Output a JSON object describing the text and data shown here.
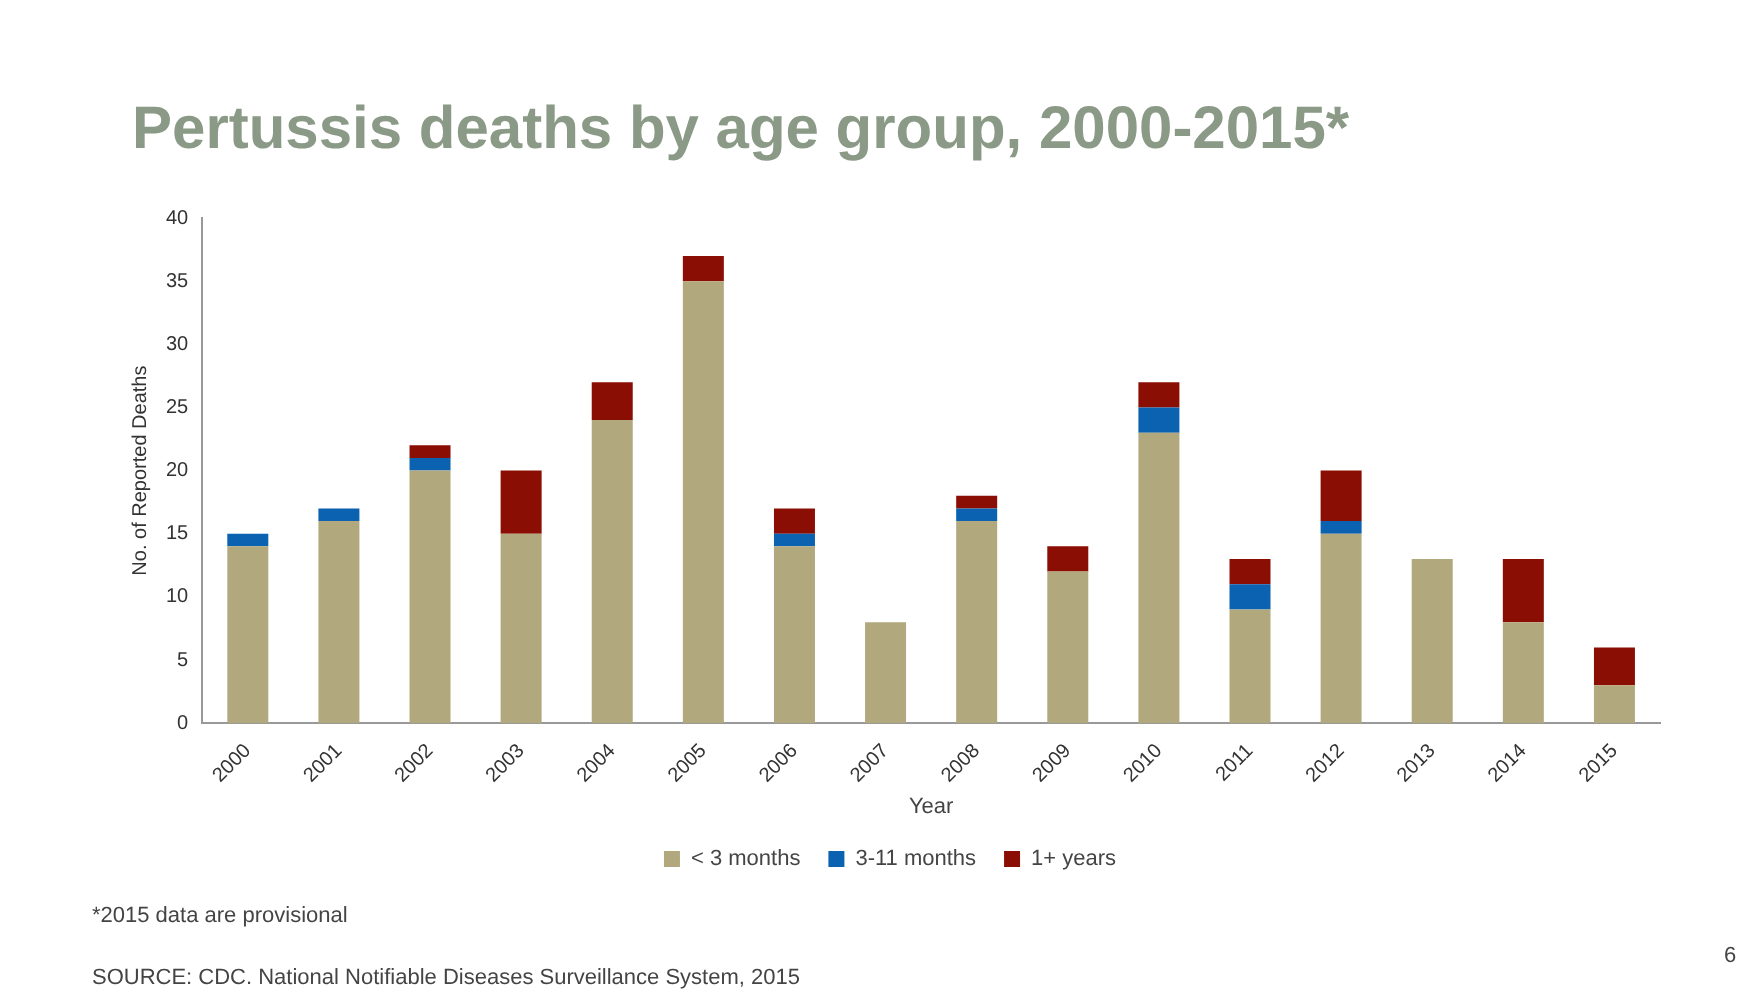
{
  "chart_data": {
    "type": "bar",
    "title": "Pertussis deaths by age group, 2000-2015*",
    "xlabel": "Year",
    "ylabel": "No. of Reported Deaths",
    "categories": [
      "2000",
      "2001",
      "2002",
      "2003",
      "2004",
      "2005",
      "2006",
      "2007",
      "2008",
      "2009",
      "2010",
      "2011",
      "2012",
      "2013",
      "2014",
      "2015"
    ],
    "series": [
      {
        "name": "< 3 months",
        "color": "#b2a87d",
        "values": [
          14,
          16,
          20,
          15,
          24,
          35,
          14,
          8,
          16,
          12,
          23,
          9,
          15,
          13,
          8,
          3
        ]
      },
      {
        "name": "3-11 months",
        "color": "#0b62b0",
        "values": [
          1,
          1,
          1,
          0,
          0,
          0,
          1,
          0,
          1,
          0,
          2,
          2,
          1,
          0,
          0,
          0
        ]
      },
      {
        "name": "1+ years",
        "color": "#8b0e04",
        "values": [
          0,
          0,
          1,
          5,
          3,
          2,
          2,
          0,
          1,
          2,
          2,
          2,
          4,
          0,
          5,
          3
        ]
      }
    ],
    "stacked": true,
    "ylim": [
      0,
      40
    ],
    "yticks": [
      0,
      5,
      10,
      15,
      20,
      25,
      30,
      35,
      40
    ],
    "grid": false,
    "legend": "bottom",
    "annotations": [
      "*2015 data are provisional",
      "SOURCE: CDC. National Notifiable Diseases Surveillance System, 2015",
      "6"
    ]
  }
}
